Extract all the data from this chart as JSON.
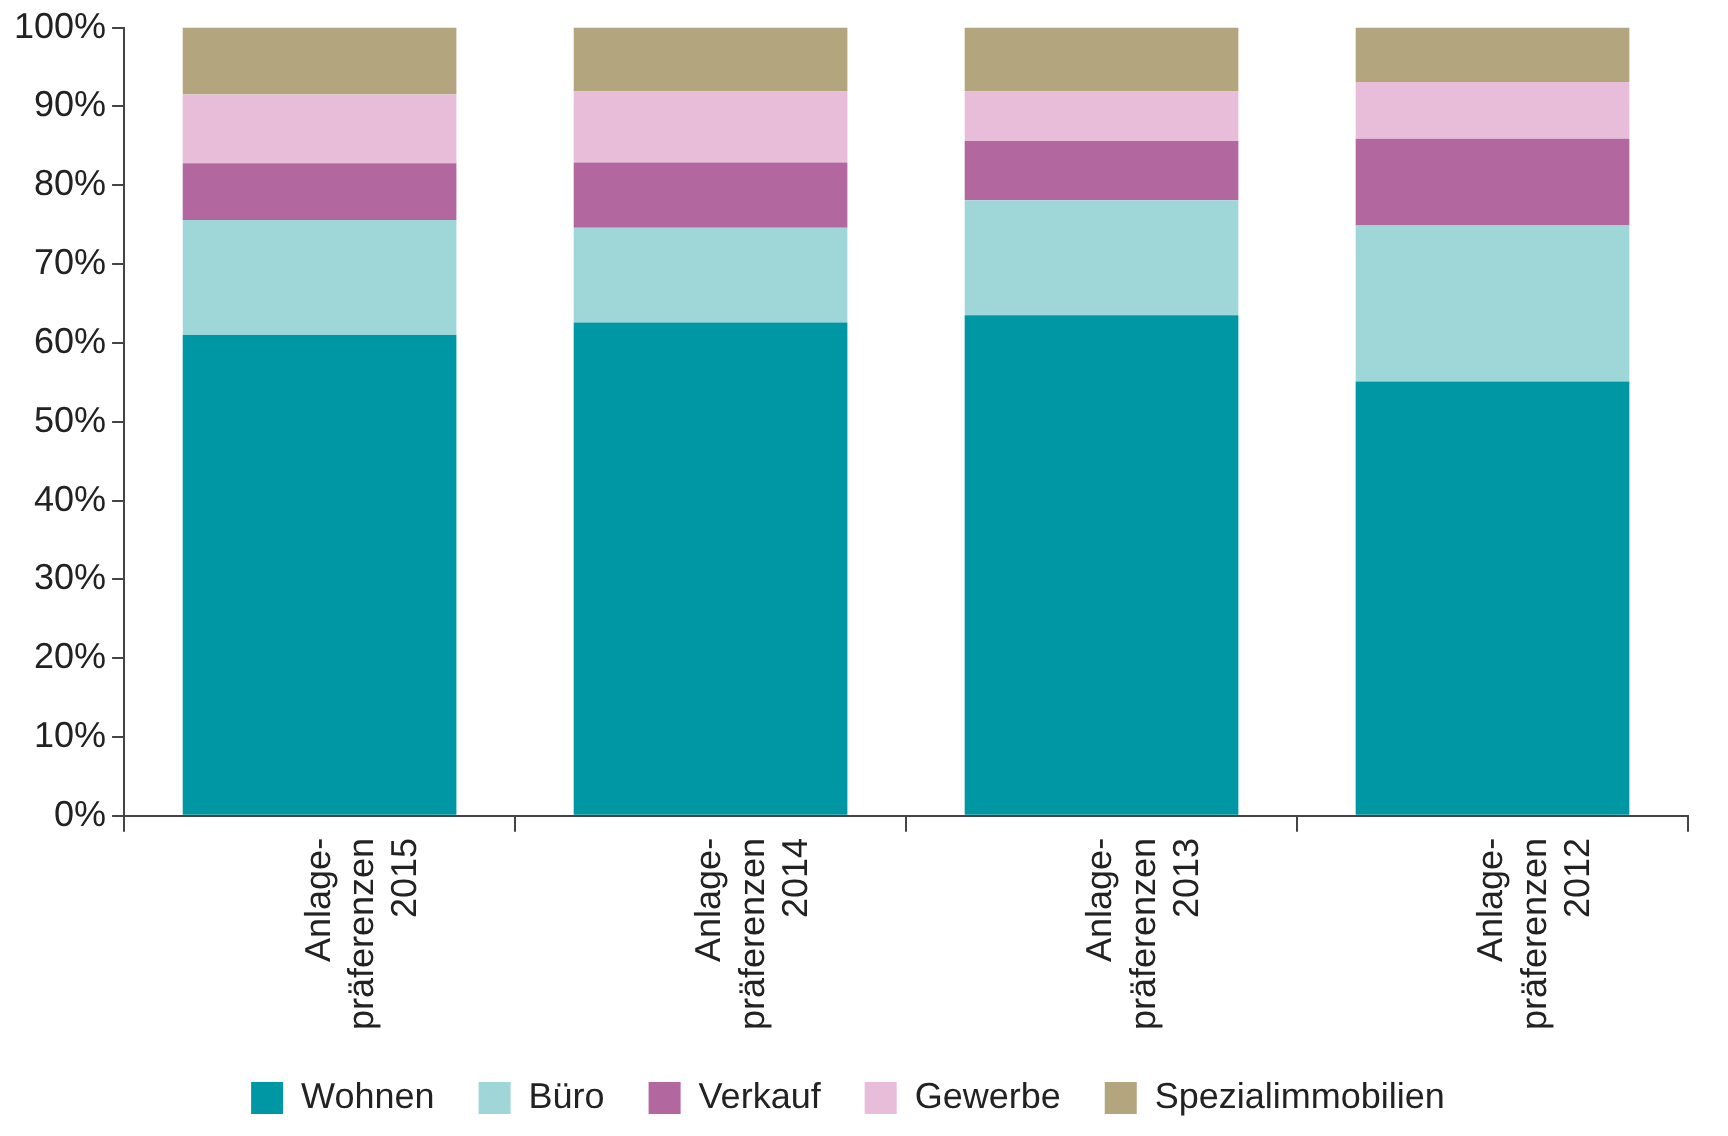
{
  "chart_data": {
    "type": "bar",
    "stacked": true,
    "categories": [
      "Anlage-\npräferenzen\n2015",
      "Anlage-\npräferenzen\n2014",
      "Anlage-\npräferenzen\n2013",
      "Anlage-\npräferenzen\n2012"
    ],
    "series": [
      {
        "name": "Wohnen",
        "color": "#0097a4",
        "values": [
          61,
          62.6,
          63.5,
          55.1
        ]
      },
      {
        "name": "Büro",
        "color": "#9fd6d8",
        "values": [
          14.6,
          12,
          14.6,
          19.8
        ]
      },
      {
        "name": "Verkauf",
        "color": "#b2679f",
        "values": [
          7.2,
          8.3,
          7.5,
          11
        ]
      },
      {
        "name": "Gewerbe",
        "color": "#e7bdd9",
        "values": [
          8.7,
          9,
          6.3,
          7.2
        ]
      },
      {
        "name": "Spezialimmobilien",
        "color": "#b3a57d",
        "values": [
          8.5,
          8.1,
          8.1,
          6.9
        ]
      }
    ],
    "ylim": [
      0,
      100
    ],
    "yticks": [
      {
        "value": 0,
        "label": "0%"
      },
      {
        "value": 10,
        "label": "10%"
      },
      {
        "value": 20,
        "label": "20%"
      },
      {
        "value": 30,
        "label": "30%"
      },
      {
        "value": 40,
        "label": "40%"
      },
      {
        "value": 50,
        "label": "50%"
      },
      {
        "value": 60,
        "label": "60%"
      },
      {
        "value": 70,
        "label": "70%"
      },
      {
        "value": 80,
        "label": "80%"
      },
      {
        "value": 90,
        "label": "90%"
      },
      {
        "value": 100,
        "label": "100%"
      }
    ],
    "grid": false,
    "legend": "bottom"
  }
}
